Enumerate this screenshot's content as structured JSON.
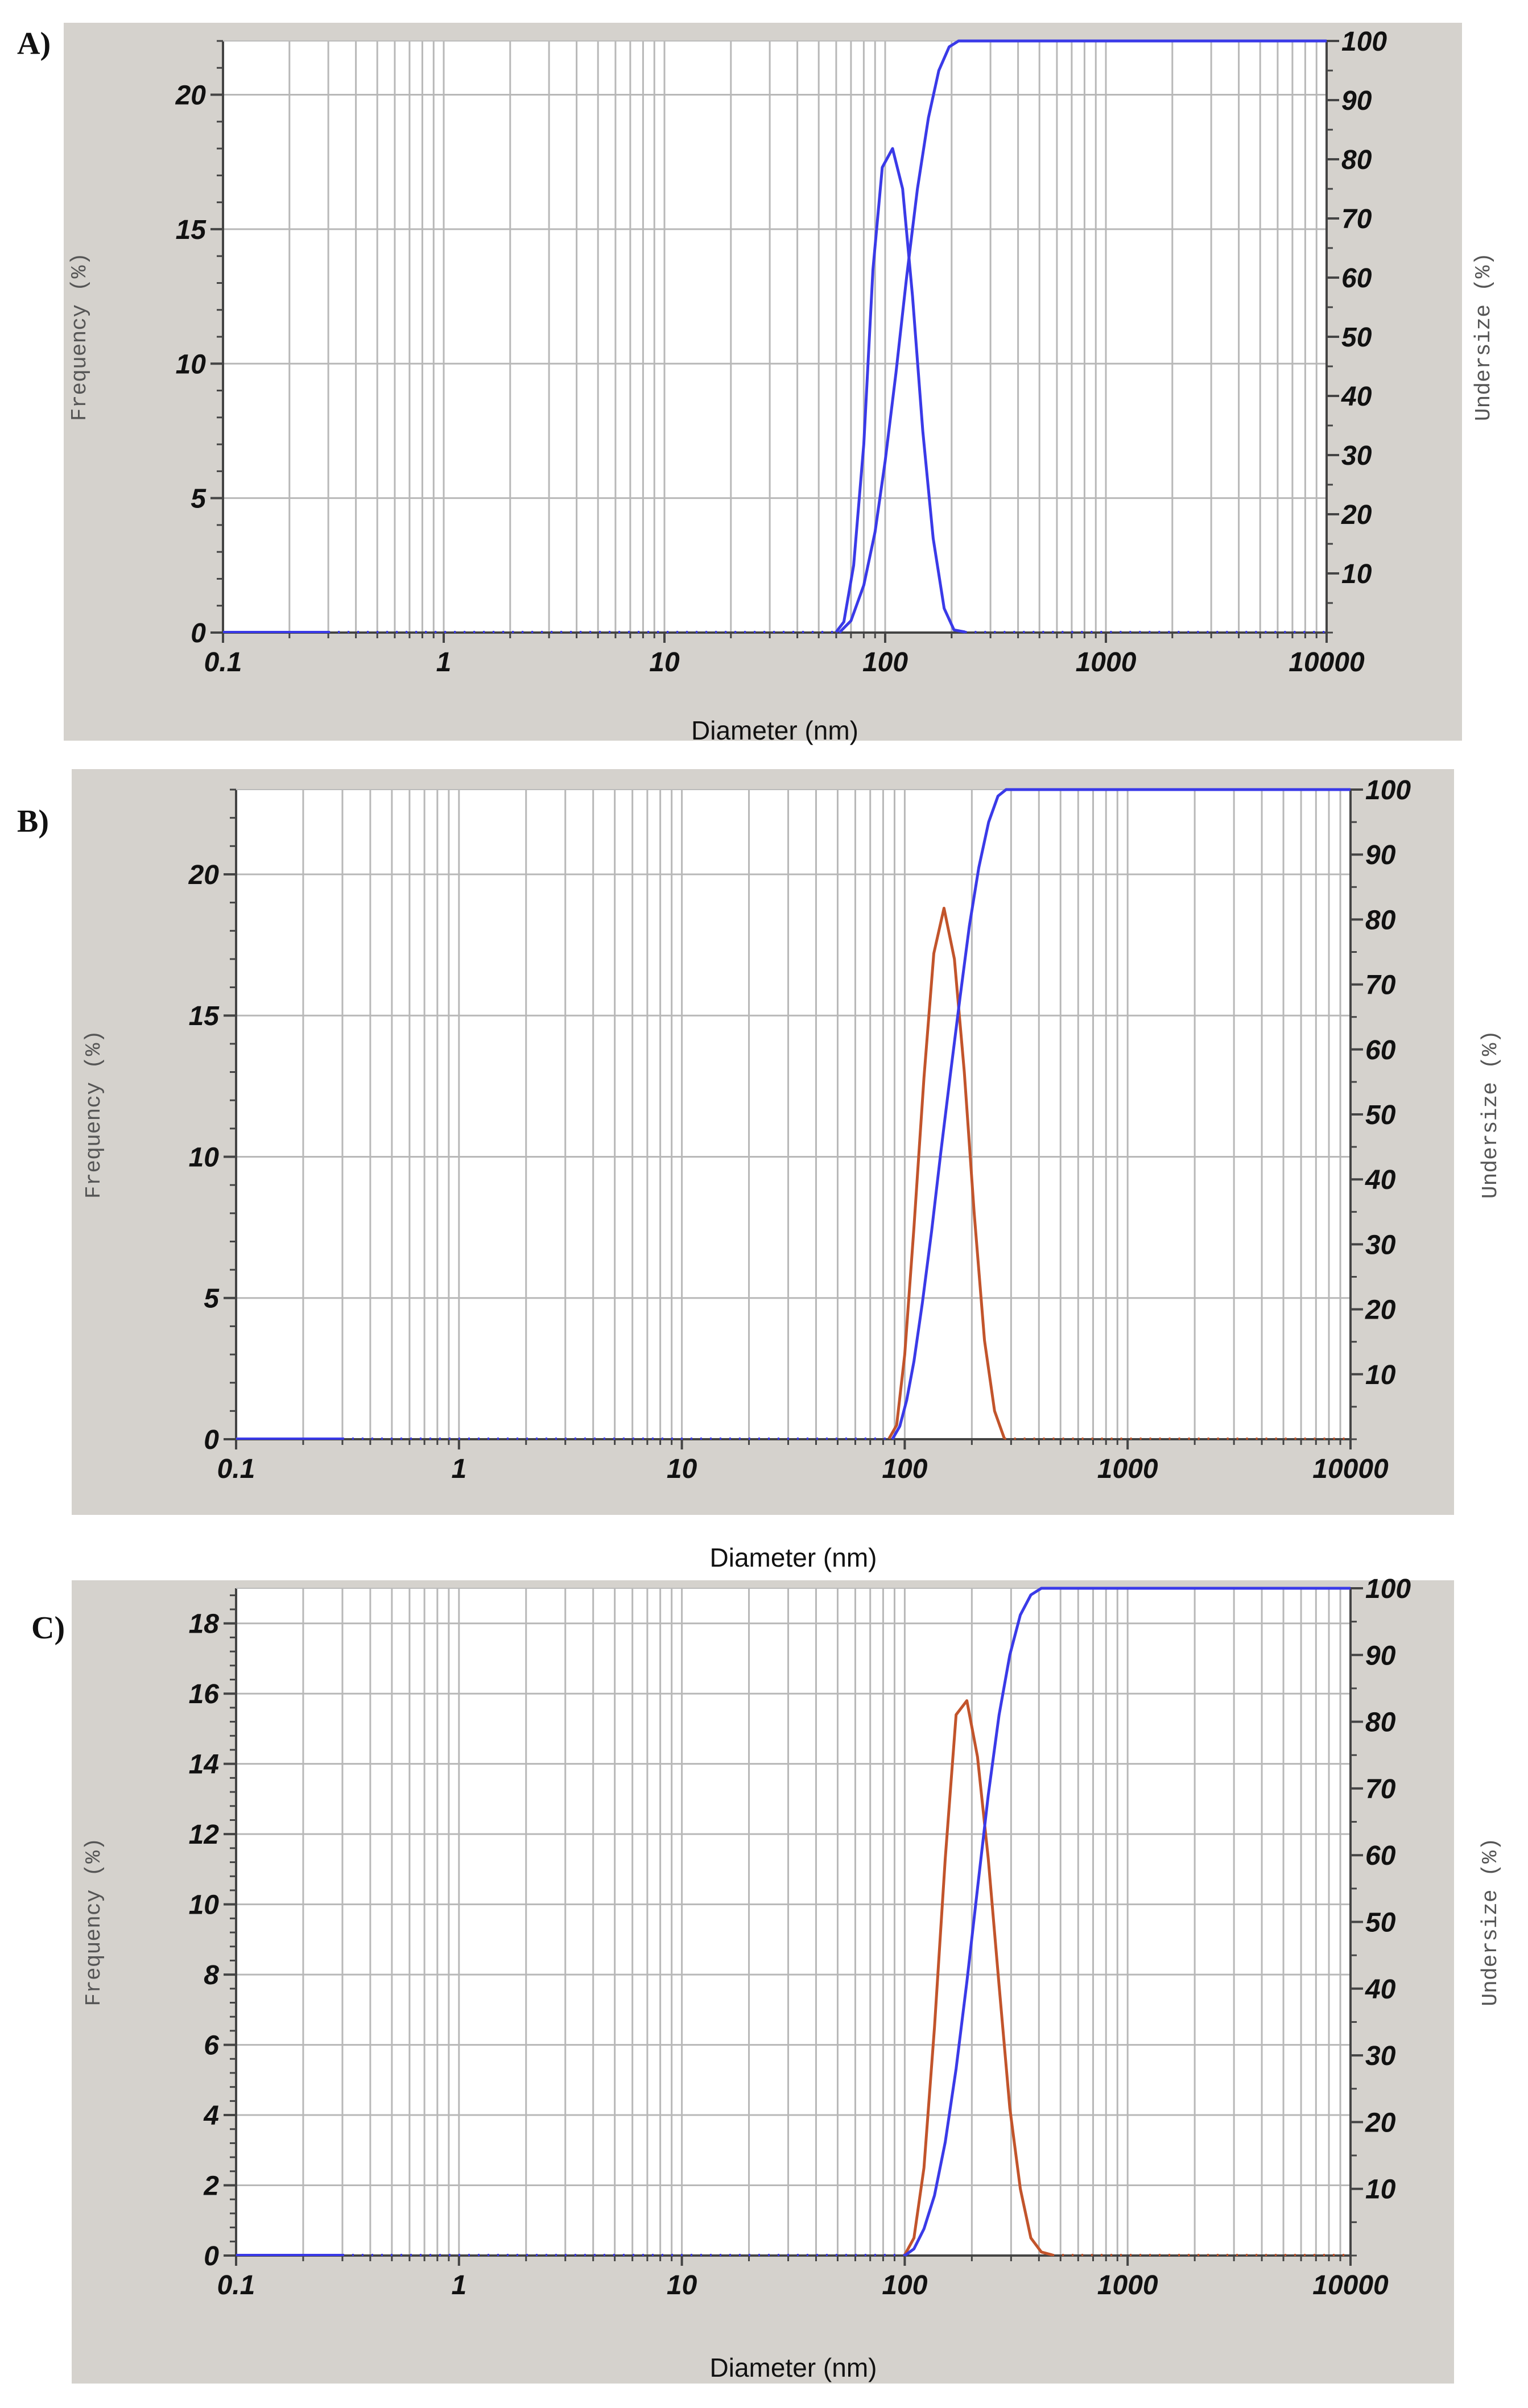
{
  "chart_data": [
    {
      "panel": "A)",
      "type": "line",
      "xlabel": "Diameter (nm)",
      "ylabel_left": "Frequency (%)",
      "ylabel_right": "Undersize (%)",
      "x_scale": "log",
      "xlim": [
        0.1,
        10000
      ],
      "x_ticks": [
        "0.1",
        "1",
        "10",
        "100",
        "1000",
        "10000"
      ],
      "ylim_left": [
        0,
        22
      ],
      "y_ticks_left": [
        "0",
        "5",
        "10",
        "15",
        "20"
      ],
      "ylim_right": [
        0,
        100
      ],
      "y_ticks_right": [
        "10",
        "20",
        "30",
        "40",
        "50",
        "60",
        "70",
        "80",
        "90",
        "100"
      ],
      "series": [
        {
          "name": "Frequency (%)",
          "axis": "left",
          "color": "#3a3ae8",
          "x": [
            0.1,
            60,
            65,
            72,
            80,
            88,
            97,
            108,
            120,
            133,
            148,
            165,
            185,
            205,
            230,
            10000
          ],
          "y": [
            0,
            0,
            0.4,
            2.5,
            7,
            13.5,
            17.3,
            18,
            16.5,
            12.5,
            7.5,
            3.5,
            0.9,
            0.1,
            0,
            0
          ]
        },
        {
          "name": "Undersize (%)",
          "axis": "right",
          "color": "#3a3ae8",
          "x": [
            0.1,
            62,
            70,
            80,
            90,
            100,
            112,
            125,
            140,
            157,
            175,
            195,
            215,
            10000
          ],
          "y": [
            0,
            0,
            2,
            8,
            17,
            29,
            44,
            60,
            75,
            87,
            95,
            99,
            100,
            100
          ]
        }
      ]
    },
    {
      "panel": "B)",
      "type": "line",
      "xlabel": "Diameter (nm)",
      "ylabel_left": "Frequency (%)",
      "ylabel_right": "Undersize (%)",
      "x_scale": "log",
      "xlim": [
        0.1,
        10000
      ],
      "x_ticks": [
        "0.1",
        "1",
        "10",
        "100",
        "1000",
        "10000"
      ],
      "ylim_left": [
        0,
        23
      ],
      "y_ticks_left": [
        "0",
        "5",
        "10",
        "15",
        "20"
      ],
      "ylim_right": [
        0,
        100
      ],
      "y_ticks_right": [
        "10",
        "20",
        "30",
        "40",
        "50",
        "60",
        "70",
        "80",
        "90",
        "100"
      ],
      "series": [
        {
          "name": "Frequency (%)",
          "axis": "left",
          "color": "#c2542b",
          "x": [
            0.1,
            85,
            92,
            100,
            110,
            122,
            135,
            150,
            167,
            185,
            205,
            228,
            253,
            280,
            10000
          ],
          "y": [
            0,
            0,
            0.5,
            3,
            7.5,
            12.8,
            17.2,
            18.8,
            17,
            13,
            8,
            3.5,
            1,
            0,
            0
          ]
        },
        {
          "name": "Undersize (%)",
          "axis": "right",
          "color": "#3a3ae8",
          "x": [
            0.1,
            88,
            95,
            102,
            110,
            120,
            132,
            145,
            160,
            177,
            195,
            215,
            238,
            262,
            285,
            10000
          ],
          "y": [
            0,
            0,
            2,
            6,
            12,
            21,
            32,
            44,
            56,
            68,
            79,
            88,
            95,
            99,
            100,
            100
          ]
        }
      ]
    },
    {
      "panel": "C)",
      "type": "line",
      "xlabel": "Diameter (nm)",
      "ylabel_left": "Frequency (%)",
      "ylabel_right": "Undersize (%)",
      "x_scale": "log",
      "xlim": [
        0.1,
        10000
      ],
      "x_ticks": [
        "0.1",
        "1",
        "10",
        "100",
        "1000",
        "10000"
      ],
      "ylim_left": [
        0,
        19
      ],
      "y_ticks_left": [
        "0",
        "2",
        "4",
        "6",
        "8",
        "10",
        "12",
        "14",
        "16",
        "18"
      ],
      "ylim_right": [
        0,
        100
      ],
      "y_ticks_right": [
        "10",
        "20",
        "30",
        "40",
        "50",
        "60",
        "70",
        "80",
        "90",
        "100"
      ],
      "series": [
        {
          "name": "Frequency (%)",
          "axis": "left",
          "color": "#c2542b",
          "x": [
            0.1,
            100,
            110,
            122,
            136,
            152,
            170,
            190,
            212,
            237,
            265,
            296,
            330,
            368,
            410,
            460,
            10000
          ],
          "y": [
            0,
            0,
            0.5,
            2.5,
            6.5,
            11.3,
            15.4,
            15.8,
            14.2,
            11.3,
            7.7,
            4.2,
            1.9,
            0.5,
            0.1,
            0,
            0
          ]
        },
        {
          "name": "Undersize (%)",
          "axis": "right",
          "color": "#3a3ae8",
          "x": [
            0.1,
            100,
            110,
            122,
            136,
            152,
            170,
            190,
            212,
            237,
            265,
            296,
            330,
            368,
            410,
            10000
          ],
          "y": [
            0,
            0,
            1,
            4,
            9,
            17,
            28,
            41,
            55,
            69,
            81,
            90,
            96,
            99,
            100,
            100
          ]
        }
      ]
    }
  ]
}
